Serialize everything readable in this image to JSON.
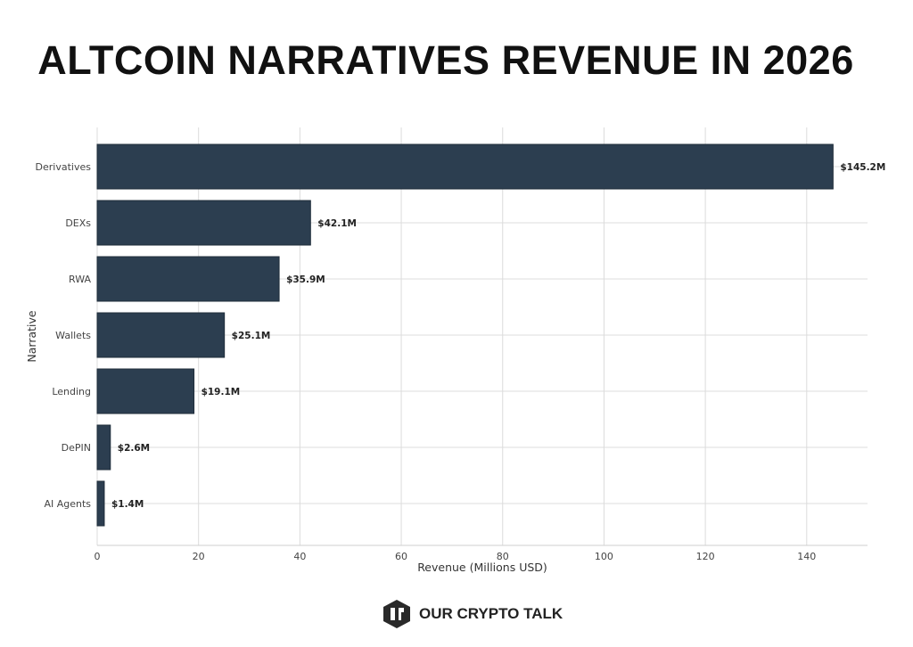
{
  "chart_data": {
    "type": "bar",
    "orientation": "horizontal",
    "title": "ALTCOIN NARRATIVES REVENUE IN 2026",
    "xlabel": "Revenue (Millions USD)",
    "ylabel": "Narrative",
    "categories": [
      "Derivatives",
      "DEXs",
      "RWA",
      "Wallets",
      "Lending",
      "DePIN",
      "AI Agents"
    ],
    "values": [
      145.2,
      42.1,
      35.9,
      25.1,
      19.1,
      2.6,
      1.4
    ],
    "data_labels": [
      "$145.2M",
      "$42.1M",
      "$35.9M",
      "$25.1M",
      "$19.1M",
      "$2.6M",
      "$1.4M"
    ],
    "xticks": [
      0,
      20,
      40,
      60,
      80,
      100,
      120,
      140
    ],
    "xlim": [
      0,
      152
    ],
    "grid": true,
    "bar_color": "#2c3e50"
  },
  "footer": {
    "brand": "OUR CRYPTO TALK"
  }
}
